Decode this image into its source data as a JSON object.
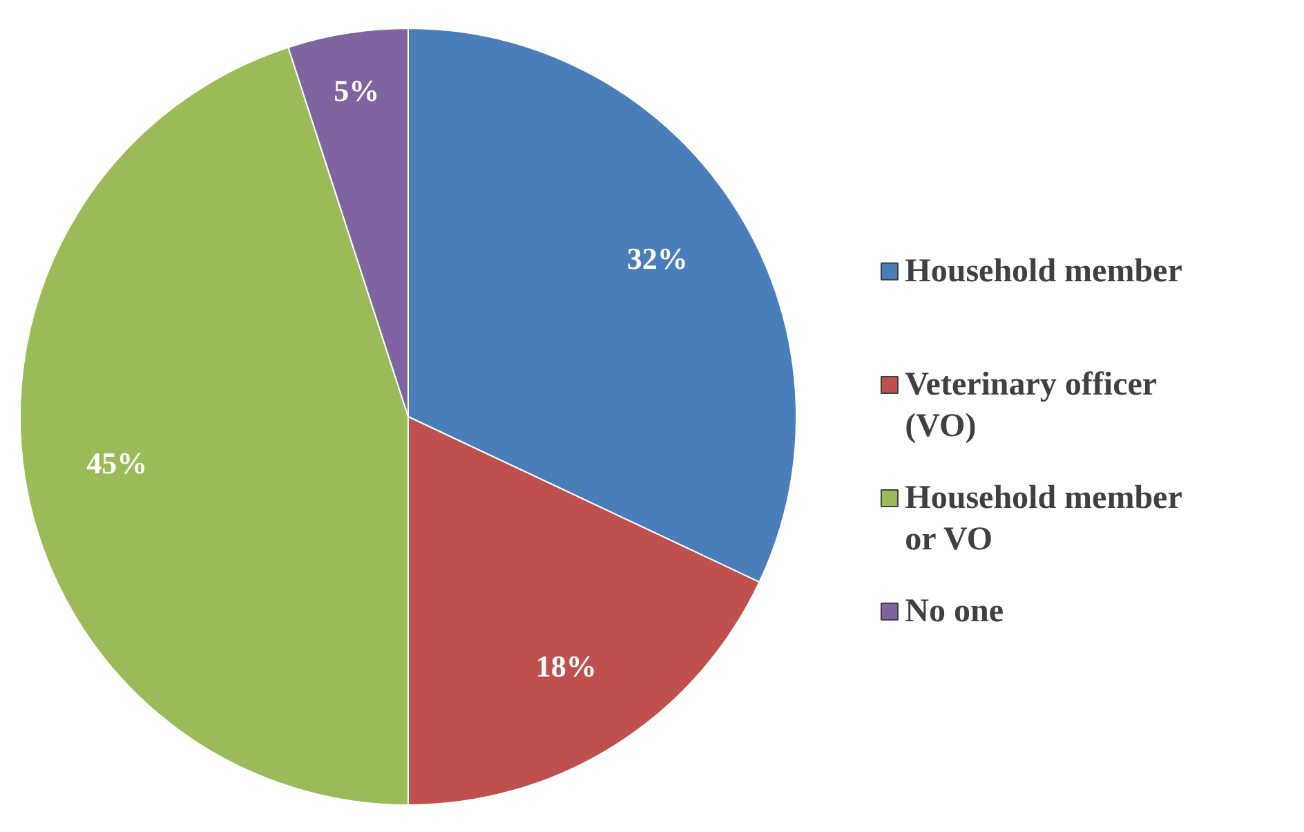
{
  "chart_data": {
    "type": "pie",
    "categories": [
      "Household member",
      "Veterinary officer (VO)",
      "Household member or VO",
      "No one"
    ],
    "values": [
      32,
      18,
      45,
      5
    ],
    "colors": [
      "#4a7ebb",
      "#c0504d",
      "#9bbb59",
      "#8064a2"
    ],
    "value_labels": [
      "32%",
      "18%",
      "45%",
      "5%"
    ],
    "legend": "right"
  }
}
